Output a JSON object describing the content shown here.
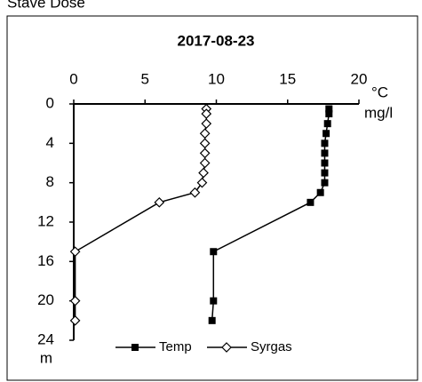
{
  "chart_data": {
    "type": "line",
    "header": "Stave Dose",
    "title": "2017-08-23",
    "x_label": "°C",
    "x_label2": "mg/l",
    "y_label": "m",
    "xlim": [
      0,
      20
    ],
    "xticks": [
      0,
      5,
      10,
      15,
      20
    ],
    "ylim": [
      0,
      24
    ],
    "yticks": [
      0,
      4,
      8,
      12,
      16,
      20,
      24
    ],
    "y_inverted": true,
    "depths": [
      0.5,
      1,
      2,
      3,
      4,
      5,
      6,
      7,
      8,
      9,
      10,
      15,
      20,
      22
    ],
    "series": [
      {
        "name": "Temp",
        "color": "#000000",
        "marker": "square",
        "values": [
          17.9,
          17.9,
          17.8,
          17.7,
          17.6,
          17.6,
          17.6,
          17.6,
          17.6,
          17.3,
          16.6,
          9.8,
          9.8,
          9.7
        ]
      },
      {
        "name": "Syrgas",
        "color": "#000000",
        "marker": "diamond",
        "values": [
          9.3,
          9.3,
          9.3,
          9.2,
          9.2,
          9.2,
          9.2,
          9.1,
          9.0,
          8.5,
          6.0,
          0.1,
          0.1,
          0.1
        ]
      }
    ],
    "legend": "bottom"
  }
}
